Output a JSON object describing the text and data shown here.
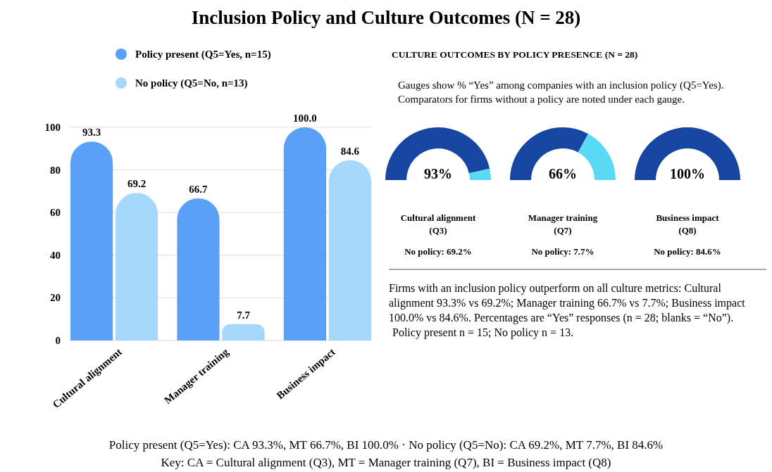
{
  "chart_data": [
    {
      "type": "bar",
      "title": "Inclusion Policy and Culture Outcomes (N = 28)",
      "categories": [
        "Cultural alignment",
        "Manager training",
        "Business impact"
      ],
      "series": [
        {
          "name": "Policy present (Q5=Yes, n=15)",
          "color": "#5aa0f7",
          "values": [
            93.3,
            66.7,
            100.0
          ],
          "value_labels": [
            "93.3",
            "66.7",
            "100.0"
          ]
        },
        {
          "name": "No policy (Q5=No, n=13)",
          "color": "#a5d8fb",
          "values": [
            69.2,
            7.7,
            84.6
          ],
          "value_labels": [
            "69.2",
            "7.7",
            "84.6"
          ]
        }
      ],
      "ylim": [
        0,
        100
      ],
      "yticks": [
        0,
        20,
        40,
        60,
        80,
        100
      ],
      "grid": "y",
      "legend": "top left",
      "marker": "circle",
      "annotations": [
        "Policy present (Q5=Yes): CA 93.3%, MT 66.7%, BI 100.0% · No policy (Q5=No): CA 69.2%, MT 7.7%, BI 84.6%",
        "Key: CA = Cultural alignment (Q3), MT = Manager training (Q7), BI = Business impact (Q8)"
      ]
    },
    {
      "type": "other",
      "title": "CULTURE OUTCOMES BY POLICY PRESENCE (N = 28)",
      "subtitle": "Gauges show % “Yes” among companies with an inclusion policy (Q5=Yes). Comparators for firms without a policy are noted under each gauge.",
      "annotations": [
        "Firms with an inclusion policy outperform on all culture metrics: Cultural alignment 93.3% vs 69.2%; Manager training 66.7% vs 7.7%; Business impact 100.0% vs 84.6%. Percentages are “Yes” responses (n = 28; blanks = “No”).",
        "Policy present n = 15; No policy n = 13."
      ]
    },
    {
      "type": "donut",
      "title": "Cultural alignment (Q3)",
      "categories": [
        null,
        null
      ],
      "values": [
        93,
        7
      ],
      "colors": [
        "#1746a2",
        "#5ad9f5"
      ],
      "value_labels": [
        "93%",
        null
      ],
      "annotations": [
        "No policy: 69.2%"
      ]
    },
    {
      "type": "donut",
      "title": "Manager training (Q7)",
      "categories": [
        null,
        null
      ],
      "values": [
        66,
        34
      ],
      "colors": [
        "#1746a2",
        "#5ad9f5"
      ],
      "value_labels": [
        "66%",
        null
      ],
      "annotations": [
        "No policy: 7.7%"
      ]
    },
    {
      "type": "pie",
      "title": "Business impact (Q8)",
      "categories": [
        null
      ],
      "values": [
        100
      ],
      "colors": [
        "#1746a2"
      ],
      "value_labels": [
        "100%"
      ],
      "annotations": [
        "No policy: 84.6%"
      ]
    }
  ]
}
